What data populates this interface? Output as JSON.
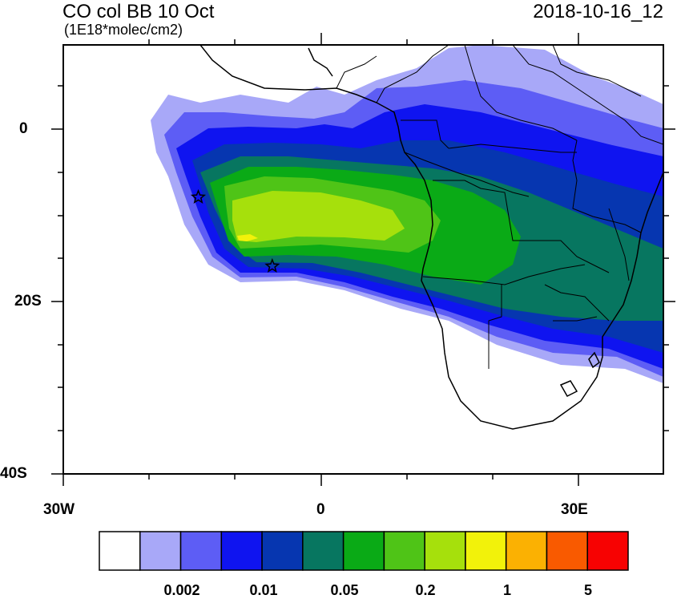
{
  "header": {
    "title": "CO col BB 10 Oct",
    "units": "(1E18*molec/cm2)",
    "datetime": "2018-10-16_12"
  },
  "axes": {
    "lat_labels": [
      "0",
      "20S",
      "40S"
    ],
    "lon_labels": [
      "30W",
      "0",
      "30E"
    ]
  },
  "markers": [
    {
      "name": "star-site-1",
      "lon": -14.3,
      "lat": -7.9
    },
    {
      "name": "star-site-2",
      "lon": -5.7,
      "lat": -15.9
    }
  ],
  "colorbar": {
    "colors": [
      "#ffffff",
      "#a8a8f8",
      "#5d5df5",
      "#0f14f0",
      "#0636b0",
      "#077660",
      "#0aaa16",
      "#4fc417",
      "#a6e00c",
      "#f2f20a",
      "#fbb102",
      "#f95a00",
      "#f70202"
    ],
    "tick_labels": [
      "0.002",
      "0.01",
      "0.05",
      "0.2",
      "1",
      "5"
    ]
  }
}
